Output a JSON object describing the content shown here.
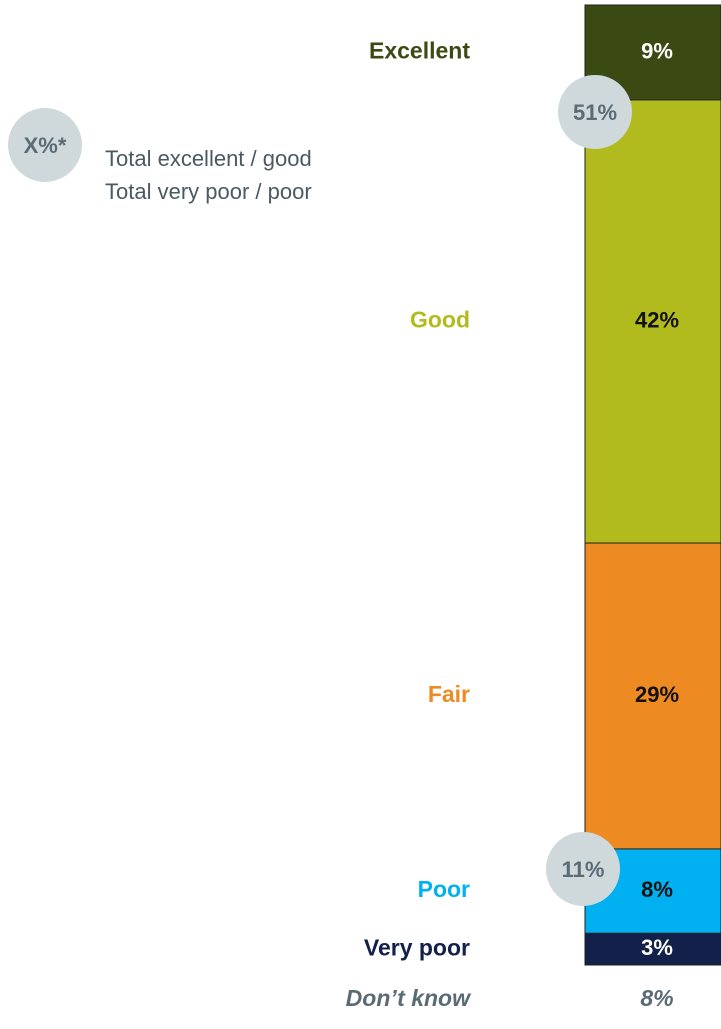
{
  "chart_data": {
    "type": "stacked_bar",
    "series": [
      {
        "name": "Excellent",
        "color": "#3b4a13",
        "values": [
          9
        ],
        "value_labels": [
          "9%"
        ]
      },
      {
        "name": "Good",
        "color": "#b2bb1e",
        "values": [
          42
        ],
        "value_labels": [
          "42%"
        ]
      },
      {
        "name": "Fair",
        "color": "#ee8a22",
        "values": [
          29
        ],
        "value_labels": [
          "29%"
        ]
      },
      {
        "name": "Poor",
        "color": "#00b0f0",
        "values": [
          8
        ],
        "value_labels": [
          "8%"
        ]
      },
      {
        "name": "Very poor",
        "color": "#13204a",
        "values": [
          3
        ],
        "value_labels": [
          "3%"
        ]
      }
    ],
    "dont_know": {
      "name": "Don’t know",
      "value": 8,
      "value_label": "8%"
    },
    "totals": [
      {
        "name": "Total excellent / good",
        "value": 51,
        "label": "51%"
      },
      {
        "name": "Total very poor / poor",
        "value": 11,
        "label": "11%"
      }
    ],
    "legend_symbol": "X%*"
  }
}
